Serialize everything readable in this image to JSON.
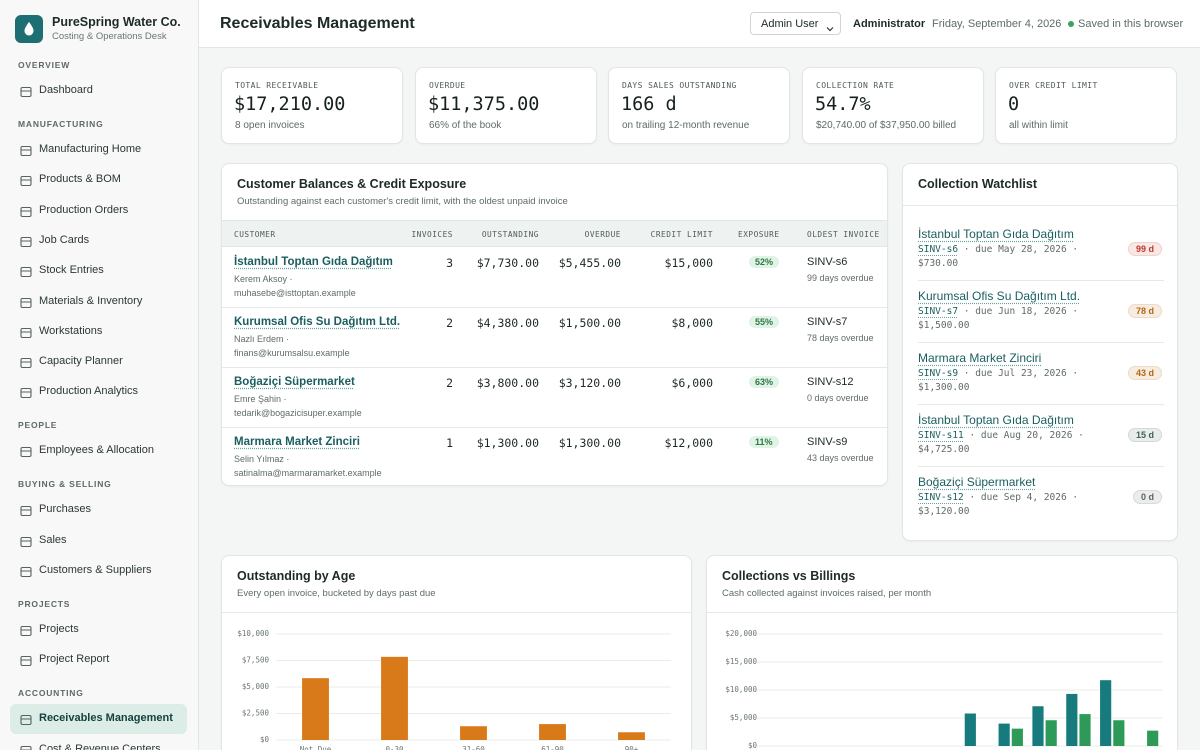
{
  "sidebar": {
    "brand": "PureSpring Water Co.",
    "tagline": "Costing & Operations Desk",
    "sections": [
      {
        "title": "OVERVIEW",
        "items": [
          {
            "label": "Dashboard"
          }
        ]
      },
      {
        "title": "MANUFACTURING",
        "items": [
          {
            "label": "Manufacturing Home"
          },
          {
            "label": "Products & BOM"
          },
          {
            "label": "Production Orders"
          },
          {
            "label": "Job Cards"
          },
          {
            "label": "Stock Entries"
          },
          {
            "label": "Materials & Inventory"
          },
          {
            "label": "Workstations"
          },
          {
            "label": "Capacity Planner"
          },
          {
            "label": "Production Analytics"
          }
        ]
      },
      {
        "title": "PEOPLE",
        "items": [
          {
            "label": "Employees & Allocation"
          }
        ]
      },
      {
        "title": "BUYING & SELLING",
        "items": [
          {
            "label": "Purchases"
          },
          {
            "label": "Sales"
          },
          {
            "label": "Customers & Suppliers"
          }
        ]
      },
      {
        "title": "PROJECTS",
        "items": [
          {
            "label": "Projects"
          },
          {
            "label": "Project Report"
          }
        ]
      },
      {
        "title": "ACCOUNTING",
        "items": [
          {
            "label": "Receivables Management",
            "active": true
          },
          {
            "label": "Cost & Revenue Centers"
          }
        ]
      }
    ]
  },
  "header": {
    "title": "Receivables Management",
    "user_select": "Admin User",
    "role": "Administrator",
    "date": "Friday, September 4, 2026",
    "status": "Saved in this browser"
  },
  "kpis": [
    {
      "label": "TOTAL RECEIVABLE",
      "value": "$17,210.00",
      "note": "8 open invoices"
    },
    {
      "label": "OVERDUE",
      "value": "$11,375.00",
      "note": "66% of the book"
    },
    {
      "label": "DAYS SALES OUTSTANDING",
      "value": "166 d",
      "note": "on trailing 12-month revenue"
    },
    {
      "label": "COLLECTION RATE",
      "value": "54.7%",
      "note": "$20,740.00 of $37,950.00 billed"
    },
    {
      "label": "OVER CREDIT LIMIT",
      "value": "0",
      "note": "all within limit"
    }
  ],
  "balances": {
    "title": "Customer Balances & Credit Exposure",
    "subtitle": "Outstanding against each customer's credit limit, with the oldest unpaid invoice",
    "columns": [
      "CUSTOMER",
      "INVOICES",
      "OUTSTANDING",
      "OVERDUE",
      "CREDIT LIMIT",
      "EXPOSURE",
      "OLDEST INVOICE"
    ],
    "rows": [
      {
        "customer": "İstanbul Toptan Gıda Dağıtım",
        "contact": "Kerem Aksoy · muhasebe@isttoptan.example",
        "invoices": 3,
        "outstanding": "$7,730.00",
        "overdue": "$5,455.00",
        "credit_limit": "$15,000",
        "exposure": "52%",
        "oldest_invoice": "SINV-s6",
        "oldest_note": "99 days overdue"
      },
      {
        "customer": "Kurumsal Ofis Su Dağıtım Ltd.",
        "contact": "Nazlı Erdem · finans@kurumsalsu.example",
        "invoices": 2,
        "outstanding": "$4,380.00",
        "overdue": "$1,500.00",
        "credit_limit": "$8,000",
        "exposure": "55%",
        "oldest_invoice": "SINV-s7",
        "oldest_note": "78 days overdue"
      },
      {
        "customer": "Boğaziçi Süpermarket",
        "contact": "Emre Şahin · tedarik@bogazicisuper.example",
        "invoices": 2,
        "outstanding": "$3,800.00",
        "overdue": "$3,120.00",
        "credit_limit": "$6,000",
        "exposure": "63%",
        "oldest_invoice": "SINV-s12",
        "oldest_note": "0 days overdue"
      },
      {
        "customer": "Marmara Market Zinciri",
        "contact": "Selin Yılmaz · satinalma@marmaramarket.example",
        "invoices": 1,
        "outstanding": "$1,300.00",
        "overdue": "$1,300.00",
        "credit_limit": "$12,000",
        "exposure": "11%",
        "oldest_invoice": "SINV-s9",
        "oldest_note": "43 days overdue"
      }
    ]
  },
  "watchlist": {
    "title": "Collection Watchlist",
    "items": [
      {
        "customer": "İstanbul Toptan Gıda Dağıtım",
        "invoice": "SINV-s6",
        "detail": " · due May 28, 2026 · $730.00",
        "days": "99 d",
        "color": "#c0392b"
      },
      {
        "customer": "Kurumsal Ofis Su Dağıtım Ltd.",
        "invoice": "SINV-s7",
        "detail": " · due Jun 18, 2026 · $1,500.00",
        "days": "78 d",
        "color": "#b9650f"
      },
      {
        "customer": "Marmara Market Zinciri",
        "invoice": "SINV-s9",
        "detail": " · due Jul 23, 2026 · $1,300.00",
        "days": "43 d",
        "color": "#b9650f"
      },
      {
        "customer": "İstanbul Toptan Gıda Dağıtım",
        "invoice": "SINV-s11",
        "detail": " · due Aug 20, 2026 · $4,725.00",
        "days": "15 d",
        "color": "#3f6158"
      },
      {
        "customer": "Boğaziçi Süpermarket",
        "invoice": "SINV-s12",
        "detail": " · due Sep 4, 2026 · $3,120.00",
        "days": "0 d",
        "color": "#5c6360"
      }
    ]
  },
  "chart_data": [
    {
      "type": "bar",
      "title": "Outstanding by Age",
      "subtitle": "Every open invoice, bucketed by days past due",
      "categories": [
        "Not Due",
        "0-30",
        "31-60",
        "61-90",
        "90+"
      ],
      "values": [
        5835,
        7845,
        1300,
        1500,
        730
      ],
      "color": "#d97a1a",
      "ylim": [
        0,
        10000
      ],
      "yticks": [
        {
          "value": 0,
          "label": "$0"
        },
        {
          "value": 2500,
          "label": "$2,500"
        },
        {
          "value": 5000,
          "label": "$5,000"
        },
        {
          "value": 7500,
          "label": "$7,500"
        },
        {
          "value": 10000,
          "label": "$10,000"
        }
      ],
      "grid": true
    },
    {
      "type": "bar",
      "title": "Collections vs Billings",
      "subtitle": "Cash collected against invoices raised, per month",
      "categories": [
        null,
        null,
        null,
        null,
        null,
        null,
        null,
        null,
        null,
        null,
        null,
        null
      ],
      "series": [
        {
          "color": "#177a7d",
          "values": [
            0,
            0,
            0,
            0,
            0,
            0,
            5800,
            4000,
            7100,
            9300,
            11750,
            0
          ]
        },
        {
          "color": "#2e9a5a",
          "values": [
            0,
            0,
            0,
            0,
            0,
            0,
            0,
            3100,
            4600,
            5700,
            4600,
            2740
          ]
        }
      ],
      "ylim": [
        0,
        20000
      ],
      "yticks": [
        {
          "value": 0,
          "label": "$0"
        },
        {
          "value": 5000,
          "label": "$5,000"
        },
        {
          "value": 10000,
          "label": "$10,000"
        },
        {
          "value": 15000,
          "label": "$15,000"
        },
        {
          "value": 20000,
          "label": "$20,000"
        }
      ],
      "grid": true
    }
  ]
}
